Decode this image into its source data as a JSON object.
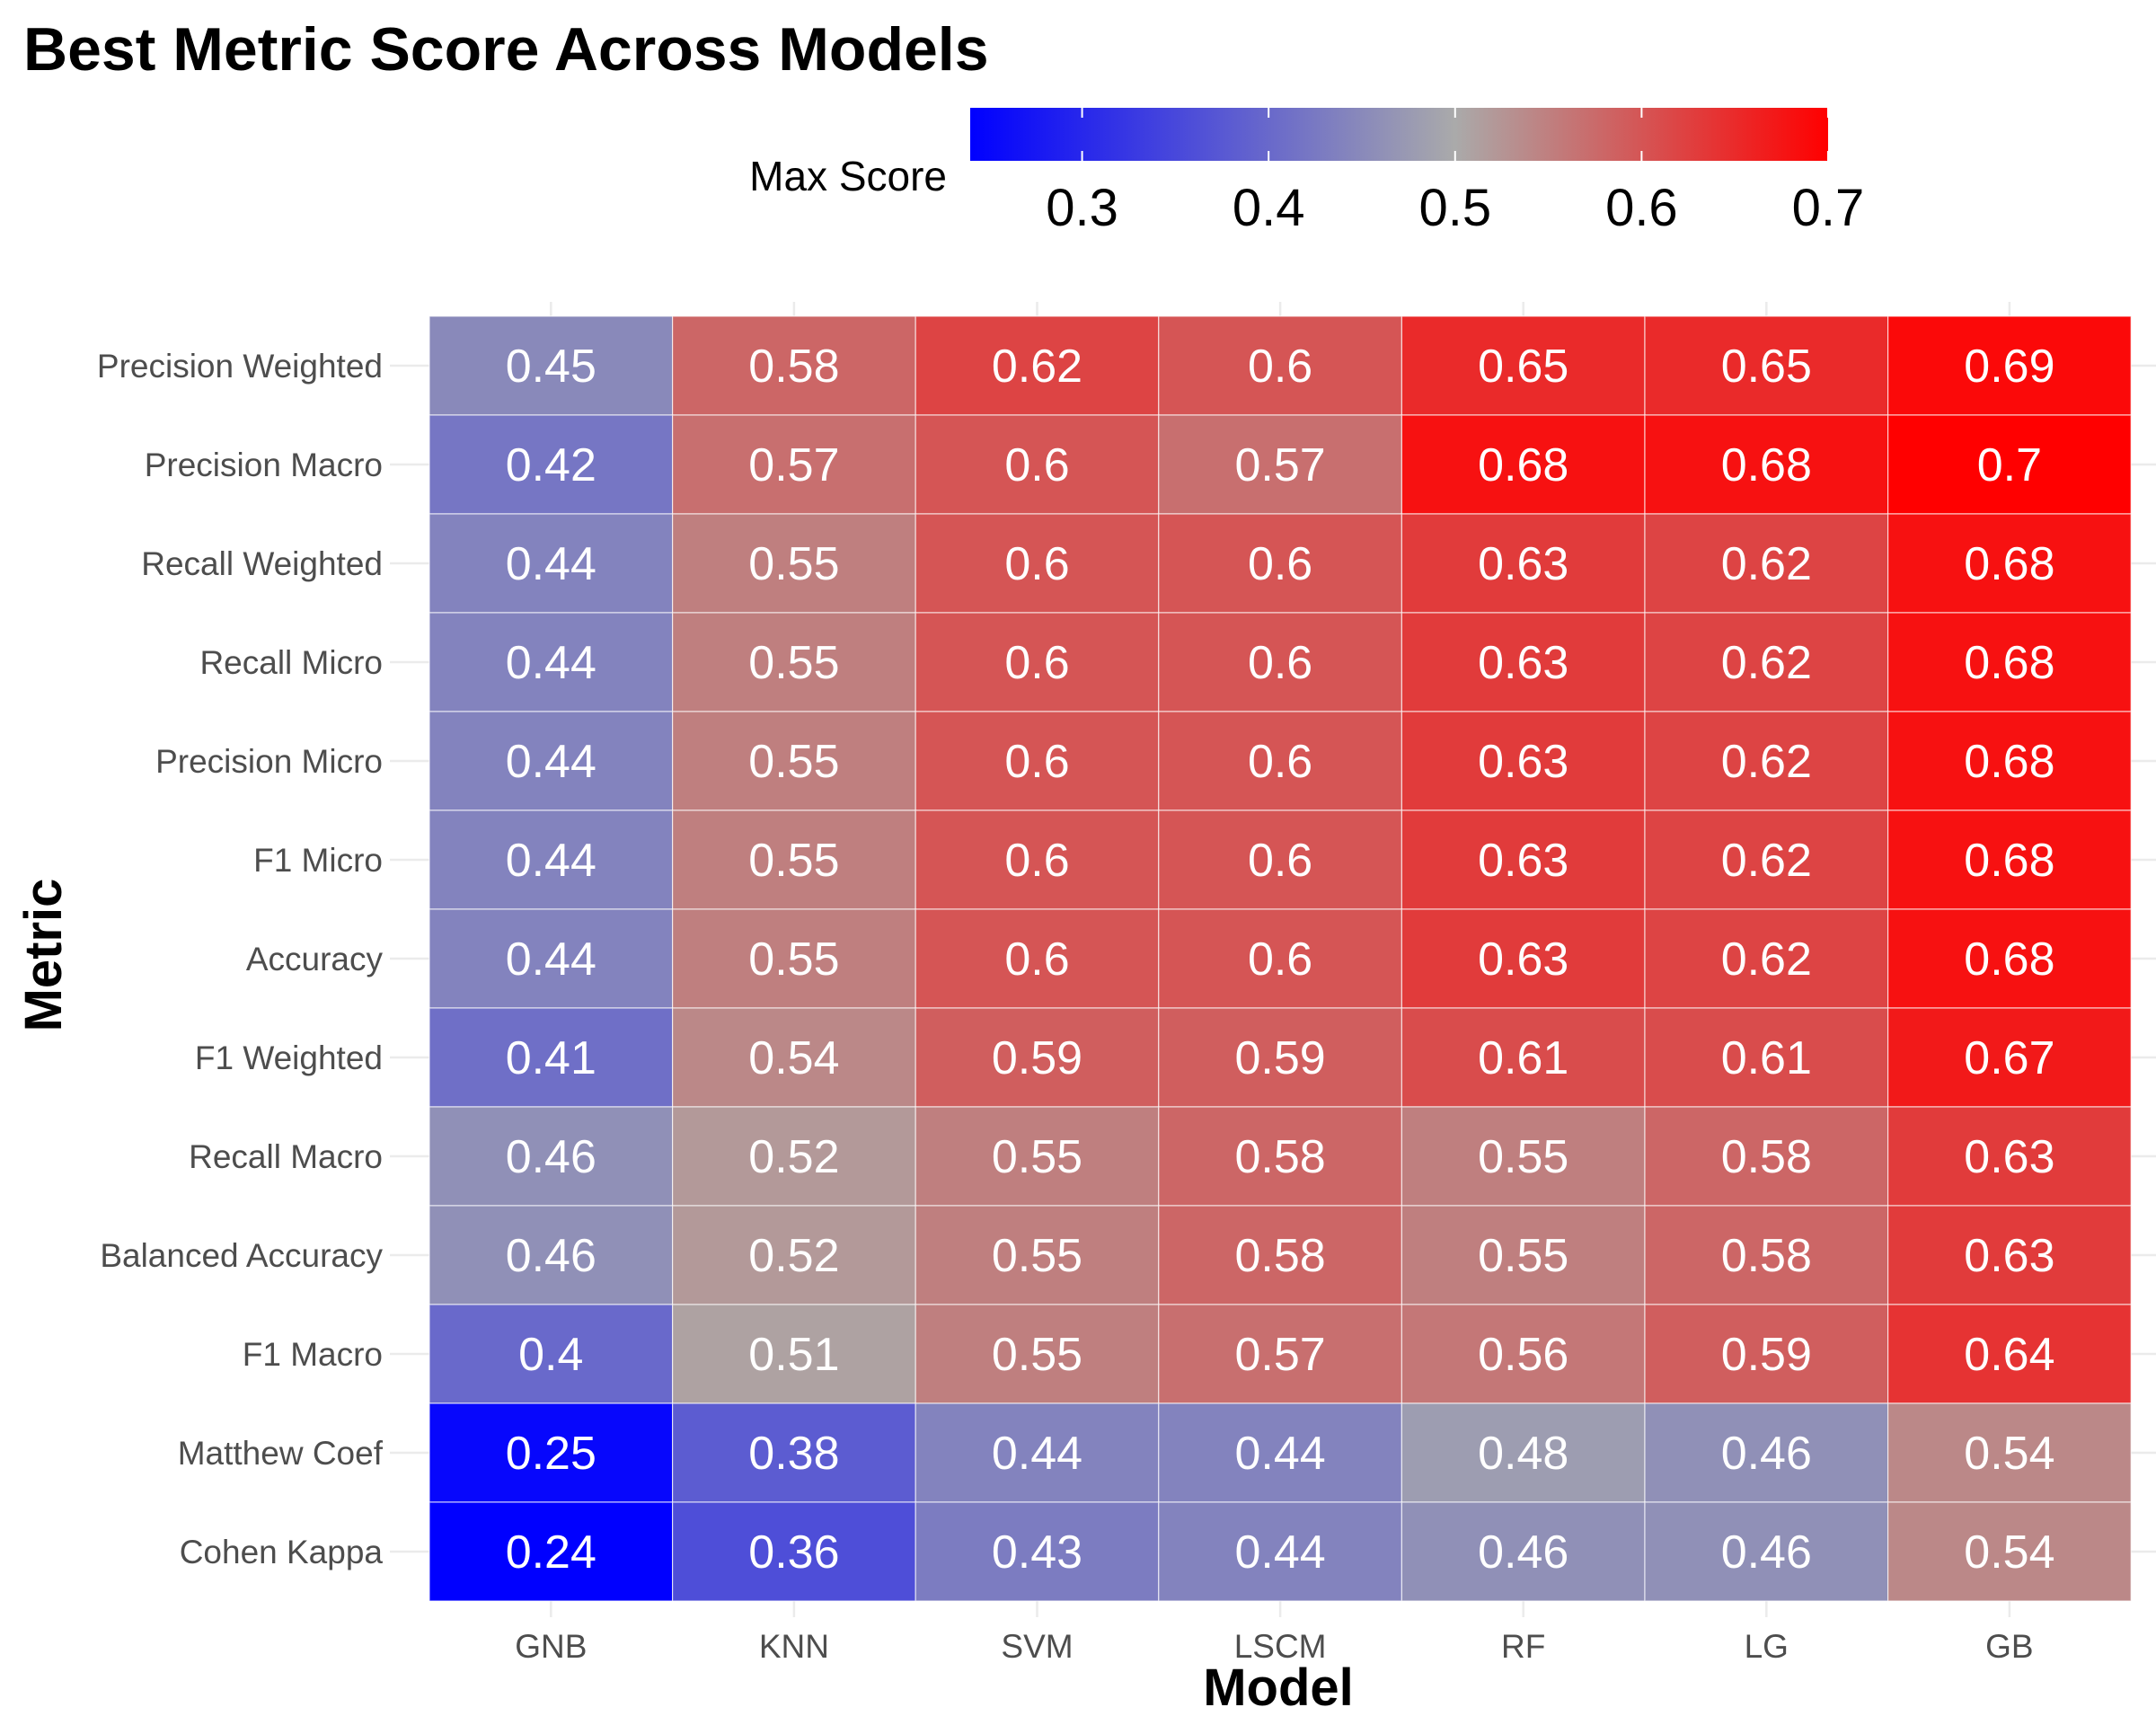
{
  "chart_data": {
    "type": "heatmap",
    "title": "Best Metric Score Across Models",
    "xlabel": "Model",
    "ylabel": "Metric",
    "x": [
      "GNB",
      "KNN",
      "SVM",
      "LSCM",
      "RF",
      "LG",
      "GB"
    ],
    "y": [
      "Precision Weighted",
      "Precision Macro",
      "Recall Weighted",
      "Recall Micro",
      "Precision Micro",
      "F1 Micro",
      "Accuracy",
      "F1 Weighted",
      "Recall Macro",
      "Balanced Accuracy",
      "F1 Macro",
      "Matthew Coef",
      "Cohen Kappa"
    ],
    "values": [
      [
        0.45,
        0.58,
        0.62,
        0.6,
        0.65,
        0.65,
        0.69
      ],
      [
        0.42,
        0.57,
        0.6,
        0.57,
        0.68,
        0.68,
        0.7
      ],
      [
        0.44,
        0.55,
        0.6,
        0.6,
        0.63,
        0.62,
        0.68
      ],
      [
        0.44,
        0.55,
        0.6,
        0.6,
        0.63,
        0.62,
        0.68
      ],
      [
        0.44,
        0.55,
        0.6,
        0.6,
        0.63,
        0.62,
        0.68
      ],
      [
        0.44,
        0.55,
        0.6,
        0.6,
        0.63,
        0.62,
        0.68
      ],
      [
        0.44,
        0.55,
        0.6,
        0.6,
        0.63,
        0.62,
        0.68
      ],
      [
        0.41,
        0.54,
        0.59,
        0.59,
        0.61,
        0.61,
        0.67
      ],
      [
        0.46,
        0.52,
        0.55,
        0.58,
        0.55,
        0.58,
        0.63
      ],
      [
        0.46,
        0.52,
        0.55,
        0.58,
        0.55,
        0.58,
        0.63
      ],
      [
        0.4,
        0.51,
        0.55,
        0.57,
        0.56,
        0.59,
        0.64
      ],
      [
        0.25,
        0.38,
        0.44,
        0.44,
        0.48,
        0.46,
        0.54
      ],
      [
        0.24,
        0.36,
        0.43,
        0.44,
        0.46,
        0.46,
        0.54
      ]
    ],
    "legend": {
      "title": "Max Score",
      "position": "top",
      "ticks": [
        0.3,
        0.4,
        0.5,
        0.6,
        0.7
      ],
      "range": [
        0.24,
        0.7
      ],
      "colors": {
        "low": "#0000ff",
        "mid": "#aaaaaa",
        "high": "#ff0000"
      },
      "midpoint": 0.5
    },
    "grid": true
  }
}
